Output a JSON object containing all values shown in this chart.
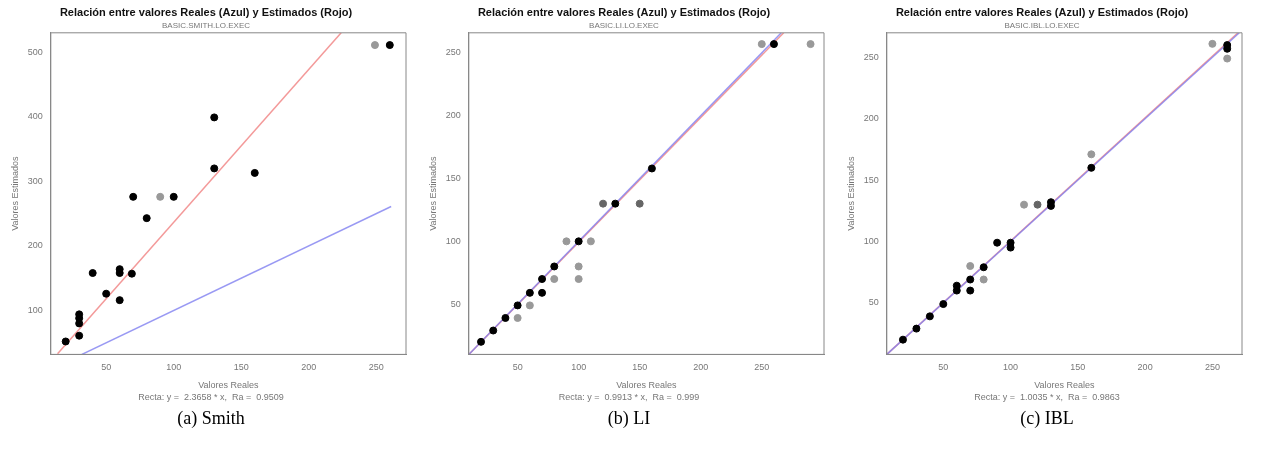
{
  "chart_data": [
    {
      "type": "scatter",
      "title": "Relación entre valores Reales (Azul) y Estimados (Rojo)",
      "subtitle": "BASIC.SMITH.LO.EXEC",
      "xlabel": "Valores Reales",
      "ylabel": "Valores Estimados",
      "annotations": [
        "Recta: y =  2.3658 * x,  Ra =  0.9509",
        "(a) Smith"
      ],
      "xlim": [
        9,
        272
      ],
      "xticks": [
        50,
        100,
        150,
        200,
        250
      ],
      "ylim": [
        32,
        530
      ],
      "yticks": [
        100,
        200,
        300,
        400,
        500
      ],
      "grid": false,
      "legend": false,
      "marker": "circle",
      "series": [
        {
          "type": "line",
          "marker": "none",
          "color": "#8080f0",
          "x": [
            32,
            261
          ],
          "values": [
            32,
            261
          ]
        },
        {
          "type": "line",
          "marker": "none",
          "color": "#f08080",
          "x": [
            14,
            224
          ],
          "values": [
            33,
            530
          ]
        },
        {
          "x": [
            20,
            30,
            30,
            30,
            30,
            40,
            50,
            60,
            60,
            60,
            69,
            70,
            90,
            100,
            80,
            130,
            130,
            160,
            249,
            260
          ],
          "values": [
            52,
            61,
            80,
            88,
            94,
            158,
            126,
            116,
            158,
            164,
            157,
            276,
            276,
            276,
            243,
            320,
            399,
            313,
            511,
            511
          ],
          "colors": [
            "#000000",
            "#000000",
            "#000000",
            "#000000",
            "#000000",
            "#000000",
            "#000000",
            "#000000",
            "#000000",
            "#000000",
            "#000000",
            "#000000",
            "#999999",
            "#000000",
            "#000000",
            "#000000",
            "#000000",
            "#000000",
            "#999999",
            "#000000"
          ]
        }
      ]
    },
    {
      "type": "scatter",
      "title": "Relación entre valores Reales (Azul) y Estimados (Rojo)",
      "subtitle": "BASIC.LI.LO.EXEC",
      "xlabel": "Valores Reales",
      "ylabel": "Valores Estimados",
      "annotations": [
        "Recta: y =  0.9913 * x,  Ra =  0.999",
        "(b) LI"
      ],
      "xlim": [
        10,
        301
      ],
      "xticks": [
        50,
        100,
        150,
        200,
        250
      ],
      "ylim": [
        10,
        266
      ],
      "yticks": [
        50,
        100,
        150,
        200,
        250
      ],
      "grid": false,
      "legend": false,
      "marker": "circle",
      "series": [
        {
          "type": "line",
          "marker": "none",
          "color": "#8080f0",
          "x": [
            10,
            266
          ],
          "values": [
            10,
            266
          ]
        },
        {
          "type": "line",
          "marker": "none",
          "color": "#f08080",
          "x": [
            10,
            268
          ],
          "values": [
            10,
            266
          ]
        },
        {
          "x": [
            20,
            30,
            40,
            50,
            50,
            60,
            70,
            70,
            60,
            80,
            80,
            100,
            90,
            110,
            100,
            100,
            120,
            130,
            150,
            160,
            250,
            260,
            290
          ],
          "values": [
            20,
            29,
            39,
            49,
            39,
            59,
            59,
            70,
            49,
            80,
            70,
            100,
            100,
            100,
            80,
            70,
            130,
            130,
            130,
            158,
            257,
            257,
            257
          ],
          "colors": [
            "#000000",
            "#000000",
            "#000000",
            "#000000",
            "#999999",
            "#000000",
            "#000000",
            "#000000",
            "#999999",
            "#000000",
            "#999999",
            "#000000",
            "#999999",
            "#999999",
            "#999999",
            "#999999",
            "#666666",
            "#000000",
            "#666666",
            "#000000",
            "#999999",
            "#000000",
            "#999999"
          ]
        }
      ]
    },
    {
      "type": "scatter",
      "title": "Relación entre valores Reales (Azul) y Estimados (Rojo)",
      "subtitle": "BASIC.IBL.LO.EXEC",
      "xlabel": "Valores Reales",
      "ylabel": "Valores Estimados",
      "annotations": [
        "Recta: y =  1.0035 * x,  Ra =  0.9863",
        "(c) IBL"
      ],
      "xlim": [
        8,
        272
      ],
      "xticks": [
        50,
        100,
        150,
        200,
        250
      ],
      "ylim": [
        8,
        270
      ],
      "yticks": [
        50,
        100,
        150,
        200,
        250
      ],
      "grid": false,
      "legend": false,
      "marker": "circle",
      "series": [
        {
          "type": "line",
          "marker": "none",
          "color": "#8080f0",
          "x": [
            8,
            270
          ],
          "values": [
            8,
            270
          ]
        },
        {
          "type": "line",
          "marker": "none",
          "color": "#f08080",
          "x": [
            8,
            269
          ],
          "values": [
            8,
            270
          ]
        },
        {
          "x": [
            20,
            30,
            40,
            50,
            60,
            60,
            70,
            70,
            70,
            80,
            80,
            90,
            100,
            100,
            110,
            120,
            130,
            130,
            160,
            160,
            250,
            261,
            261,
            261
          ],
          "values": [
            20,
            29,
            39,
            49,
            60,
            64,
            60,
            69,
            80,
            79,
            69,
            99,
            99,
            95,
            130,
            130,
            132,
            129,
            160,
            171,
            261,
            260,
            257,
            249
          ],
          "colors": [
            "#000000",
            "#000000",
            "#000000",
            "#000000",
            "#000000",
            "#000000",
            "#000000",
            "#000000",
            "#999999",
            "#000000",
            "#999999",
            "#000000",
            "#000000",
            "#000000",
            "#999999",
            "#666666",
            "#000000",
            "#000000",
            "#000000",
            "#999999",
            "#999999",
            "#000000",
            "#000000",
            "#999999"
          ]
        }
      ]
    }
  ]
}
